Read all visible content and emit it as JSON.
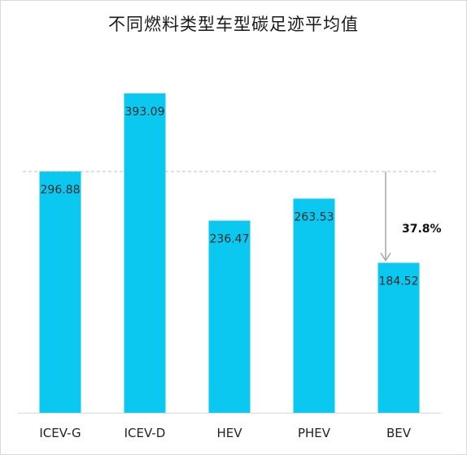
{
  "chart_data": {
    "type": "bar",
    "title": "不同燃料类型车型碳足迹平均值",
    "categories": [
      "ICEV-G",
      "ICEV-D",
      "HEV",
      "PHEV",
      "BEV"
    ],
    "values": [
      296.88,
      393.09,
      236.47,
      263.53,
      184.52
    ],
    "value_labels": [
      "296.88",
      "393.09",
      "236.47",
      "263.53",
      "184.52"
    ],
    "bar_color": "#0BC8F0",
    "reference_line": {
      "value": 296.88,
      "style": "dashed",
      "color": "#bfbfbf"
    },
    "annotation": {
      "text": "37.8%",
      "from_value": 296.88,
      "to_value": 184.52,
      "category": "BEV"
    },
    "xlabel": "",
    "ylabel": "",
    "ylim": [
      0,
      400
    ],
    "grid": false,
    "legend": "none"
  }
}
